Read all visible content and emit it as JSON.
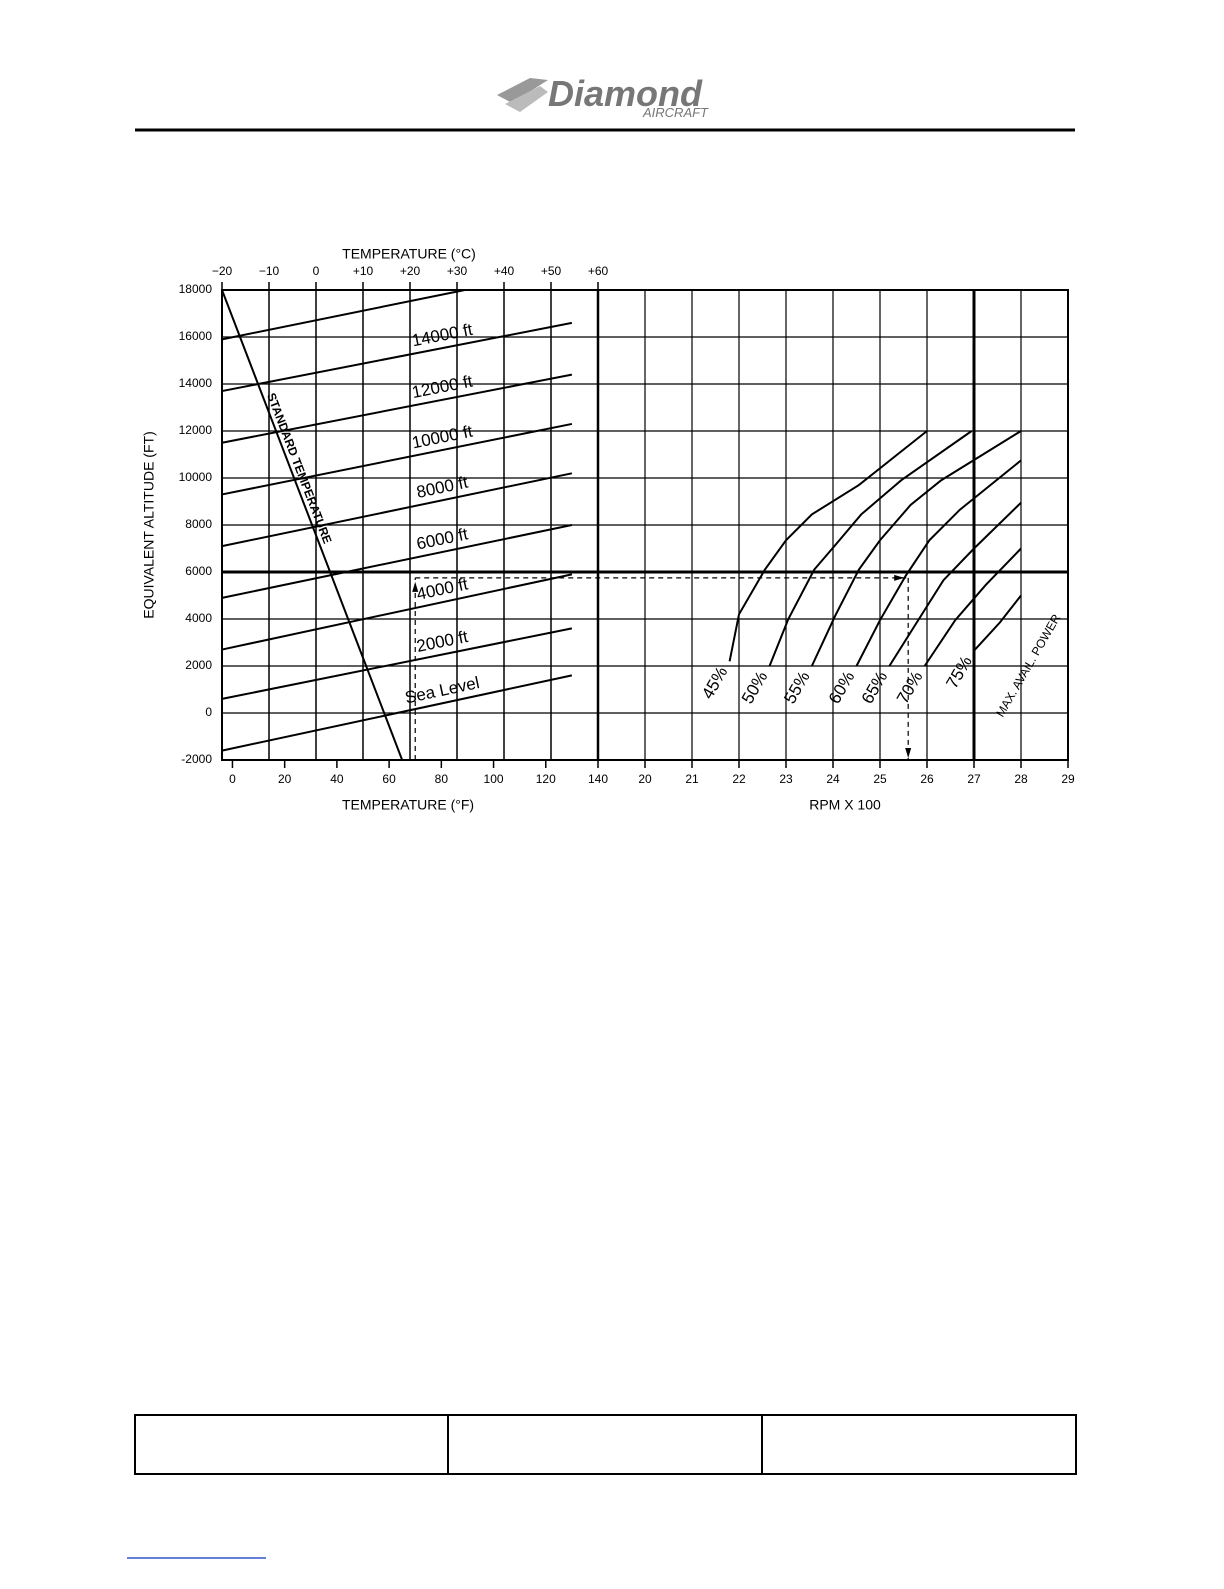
{
  "header": {
    "logo": "Diamond",
    "logo_sub": "AIRCRAFT"
  },
  "chart_data": {
    "type": "line",
    "title_top": "TEMPERATURE (°C)",
    "xlabel": "TEMPERATURE (°F)",
    "x2label": "RPM X 100",
    "ylabel": "EQUIVALENT ALTITUDE (FT)",
    "annotation": "MAX. AVAIL. POWER",
    "xlim": [
      -4,
      140
    ],
    "xticks": [
      0,
      20,
      40,
      60,
      80,
      100,
      120,
      140
    ],
    "clim": [
      -20,
      60
    ],
    "cticks": [
      {
        "value": -20,
        "label": "−20"
      },
      {
        "value": -10,
        "label": "−10"
      },
      0,
      {
        "value": 10,
        "label": "+10"
      },
      {
        "value": 20,
        "label": "+20"
      },
      {
        "value": 30,
        "label": "+30"
      },
      {
        "value": 40,
        "label": "+40"
      },
      {
        "value": 50,
        "label": "+50"
      },
      {
        "value": 60,
        "label": "+60"
      }
    ],
    "rpm_lim": [
      19,
      29
    ],
    "rpm_ticks": [
      20,
      21,
      22,
      23,
      24,
      25,
      26,
      27,
      28,
      29
    ],
    "ylim": [
      -2000,
      18000
    ],
    "yticks": [
      -2000,
      0,
      2000,
      4000,
      6000,
      8000,
      10000,
      12000,
      14000,
      16000,
      18000
    ],
    "grid": true,
    "emphasis": {
      "y": 6000,
      "rpm": 27
    },
    "color": "#000000",
    "series": [
      {
        "name": "Sea Level",
        "axis": "f",
        "x": [
          -4,
          130
        ],
        "values": [
          -1600,
          1600
        ]
      },
      {
        "name": "2000 ft",
        "axis": "f",
        "x": [
          -4,
          130
        ],
        "values": [
          600,
          3600
        ]
      },
      {
        "name": "4000 ft",
        "axis": "f",
        "x": [
          -4,
          130
        ],
        "values": [
          2700,
          5900
        ]
      },
      {
        "name": "6000 ft",
        "axis": "f",
        "x": [
          -4,
          130
        ],
        "values": [
          4900,
          8000
        ]
      },
      {
        "name": "8000 ft",
        "axis": "f",
        "x": [
          -4,
          130
        ],
        "values": [
          7100,
          10200
        ]
      },
      {
        "name": "10000 ft",
        "axis": "f",
        "x": [
          -4,
          130
        ],
        "values": [
          9300,
          12300
        ]
      },
      {
        "name": "12000 ft",
        "axis": "f",
        "x": [
          -4,
          130
        ],
        "values": [
          11500,
          14400
        ]
      },
      {
        "name": "14000 ft",
        "axis": "f",
        "x": [
          -4,
          130
        ],
        "values": [
          13700,
          16600
        ]
      },
      {
        "axis": "f",
        "x": [
          -4,
          89
        ],
        "values": [
          15900,
          18000
        ]
      },
      {
        "name": "STANDARD TEMPERATURE",
        "axis": "f",
        "x": [
          -4,
          65
        ],
        "values": [
          18000,
          -2000
        ]
      },
      {
        "name": "45%",
        "axis": "rpm",
        "x": [
          21.8,
          22.0,
          22.55,
          23.0,
          23.55,
          24.55,
          26.0
        ],
        "values": [
          2200,
          4200,
          6100,
          7350,
          8450,
          9700,
          12000
        ]
      },
      {
        "name": "50%",
        "axis": "rpm",
        "x": [
          22.65,
          23.05,
          23.6,
          24.05,
          24.6,
          25.45,
          26.95
        ],
        "values": [
          2000,
          4000,
          6100,
          7150,
          8450,
          9900,
          12000
        ]
      },
      {
        "name": "55%",
        "axis": "rpm",
        "x": [
          23.55,
          24.05,
          24.55,
          25.0,
          25.65,
          26.3,
          28.0
        ],
        "values": [
          2000,
          4150,
          6100,
          7350,
          8850,
          9900,
          12000
        ]
      },
      {
        "name": "60%",
        "axis": "rpm",
        "x": [
          24.5,
          25.0,
          25.55,
          26.05,
          26.7,
          28.0
        ],
        "values": [
          2000,
          3950,
          5850,
          7350,
          8650,
          10750
        ]
      },
      {
        "name": "65%",
        "axis": "rpm",
        "x": [
          25.2,
          25.75,
          26.35,
          27.0,
          28.0
        ],
        "values": [
          2000,
          3750,
          5650,
          7000,
          8950
        ]
      },
      {
        "name": "70%",
        "axis": "rpm",
        "x": [
          25.95,
          26.6,
          27.25,
          28.0
        ],
        "values": [
          2000,
          3950,
          5450,
          7000
        ]
      },
      {
        "name": "75%",
        "axis": "rpm",
        "x": [
          27.0,
          27.55,
          28.0
        ],
        "values": [
          2650,
          3850,
          5000
        ]
      }
    ],
    "example": {
      "temperature_f": 70,
      "altitude": 5750,
      "rpm": 25.6
    }
  }
}
